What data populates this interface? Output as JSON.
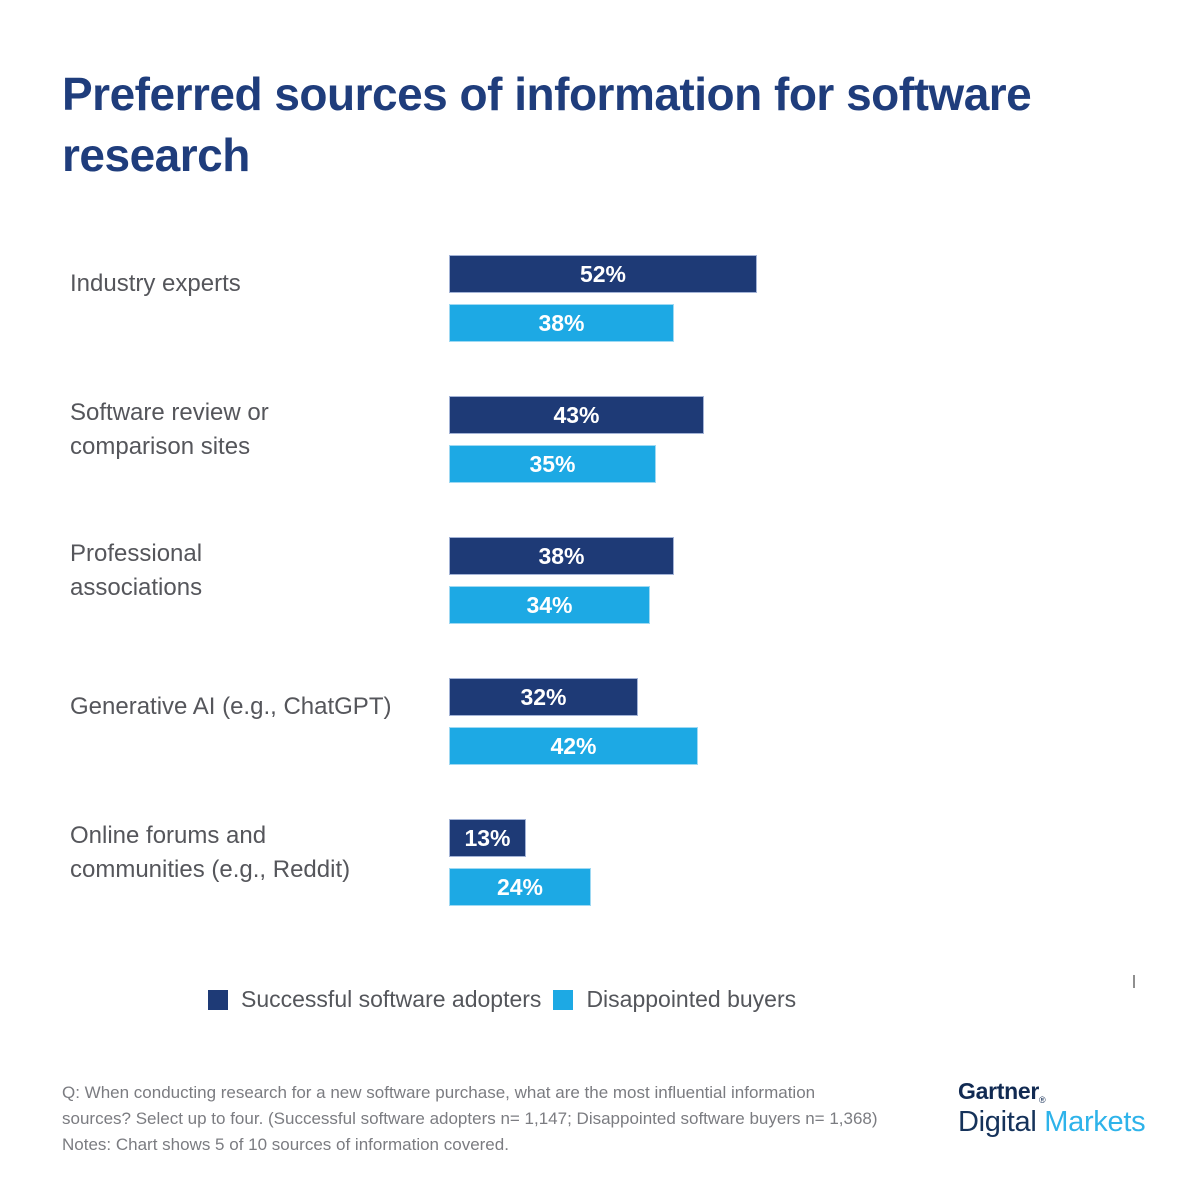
{
  "title": "Preferred sources of information for software research",
  "colors": {
    "title_navy": "#1f3d7c",
    "bar_navy": "#1e3a76",
    "bar_light_blue": "#1da9e4",
    "label_gray": "#55565b",
    "footnote_gray": "#7b7c81"
  },
  "chart_data": {
    "type": "bar",
    "orientation": "horizontal",
    "unit": "%",
    "categories": [
      "Industry experts",
      "Software review or comparison sites",
      "Professional associations",
      "Generative AI (e.g., ChatGPT)",
      "Online forums and communities (e.g., Reddit)"
    ],
    "series": [
      {
        "name": "Successful software adopters",
        "color": "#1e3a76",
        "values": [
          52,
          43,
          38,
          32,
          13
        ]
      },
      {
        "name": "Disappointed buyers",
        "color": "#1da9e4",
        "values": [
          38,
          35,
          34,
          42,
          24
        ]
      }
    ],
    "value_labels": "inside-center",
    "axis_visible": false,
    "xlim": [
      0,
      60
    ],
    "legend_position": "bottom"
  },
  "display": {
    "category_lines": [
      [
        "Industry experts"
      ],
      [
        "Software review or",
        "comparison sites"
      ],
      [
        "Professional",
        "associations"
      ],
      [
        "Generative AI (e.g., ChatGPT)"
      ],
      [
        "Online forums and",
        "communities (e.g., Reddit)"
      ]
    ]
  },
  "legend": {
    "items": [
      {
        "label": "Successful software adopters",
        "color": "#1e3a76"
      },
      {
        "label": "Disappointed buyers",
        "color": "#1da9e4"
      }
    ]
  },
  "footnote": {
    "lines": [
      "Q: When conducting research for a new software purchase, what are the most influential information",
      "sources? Select up to four. (Successful software adopters n= 1,147; Disappointed software buyers n= 1,368)",
      "Notes: Chart shows 5 of 10 sources of information covered."
    ]
  },
  "logo": {
    "brand": "Gartner",
    "reg": "®",
    "line2_dark": "Digital",
    "line2_light": "Markets"
  }
}
